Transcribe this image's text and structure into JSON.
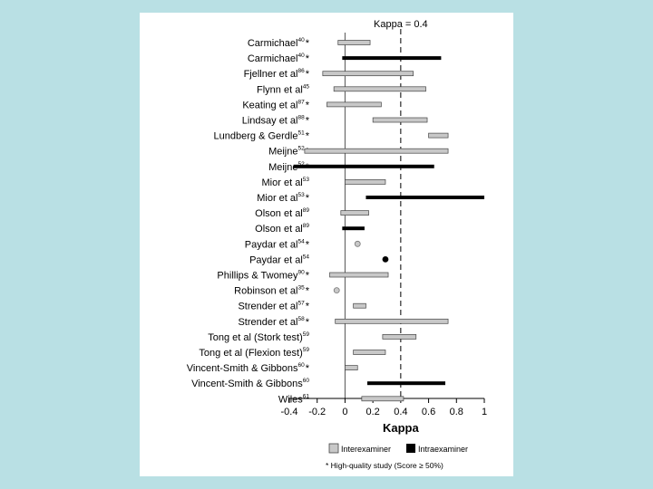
{
  "chart_data": {
    "type": "forest",
    "title": "",
    "xlabel": "Kappa",
    "xlim": [
      -0.4,
      1
    ],
    "xticks": [
      "-0.4",
      "-0.2",
      "0",
      "0.2",
      "0.4",
      "0.6",
      "0.8",
      "1"
    ],
    "reference_line": {
      "value": 0.4,
      "label": "Kappa = 0.4"
    },
    "legend": {
      "interexaminer": "Interexaminer",
      "intraexaminer": "Intraexaminer",
      "note": "* High-quality study (Score ≥ 50%)"
    },
    "colors": {
      "interexaminer": "#c8c8c8",
      "intraexaminer": "#000000"
    },
    "rows": [
      {
        "label": "Carmichael",
        "ref": "40",
        "star": "*",
        "type": "inter",
        "low": -0.05,
        "high": 0.18
      },
      {
        "label": "Carmichael",
        "ref": "40",
        "star": "*",
        "type": "intra",
        "low": -0.02,
        "high": 0.69
      },
      {
        "label": "Fjellner et al",
        "ref": "86",
        "star": "*",
        "type": "inter",
        "low": -0.16,
        "high": 0.49
      },
      {
        "label": "Flynn et al",
        "ref": "45",
        "star": "",
        "type": "inter",
        "low": -0.08,
        "high": 0.58
      },
      {
        "label": "Keating et al",
        "ref": "87",
        "star": "*",
        "type": "inter",
        "low": -0.13,
        "high": 0.26
      },
      {
        "label": "Lindsay et al",
        "ref": "88",
        "star": "*",
        "type": "inter",
        "low": 0.2,
        "high": 0.59
      },
      {
        "label": "Lundberg & Gerdle",
        "ref": "51",
        "star": "*",
        "type": "inter",
        "low": 0.6,
        "high": 0.74
      },
      {
        "label": "Meijne",
        "ref": "52",
        "star": "*",
        "type": "inter",
        "low": -0.29,
        "high": 0.74
      },
      {
        "label": "Meijne",
        "ref": "52",
        "star": "*",
        "type": "intra",
        "low": -0.37,
        "high": 0.64
      },
      {
        "label": "Mior et al",
        "ref": "53",
        "star": "",
        "type": "inter",
        "low": 0.0,
        "high": 0.29
      },
      {
        "label": "Mior et al",
        "ref": "53",
        "star": "*",
        "type": "intra",
        "low": 0.15,
        "high": 1.0
      },
      {
        "label": "Olson et al",
        "ref": "89",
        "star": "",
        "type": "inter",
        "low": -0.03,
        "high": 0.17
      },
      {
        "label": "Olson et al",
        "ref": "89",
        "star": "",
        "type": "intra",
        "low": -0.02,
        "high": 0.14
      },
      {
        "label": "Paydar et al",
        "ref": "54",
        "star": "*",
        "type": "inter",
        "point": 0.09
      },
      {
        "label": "Paydar et al",
        "ref": "54",
        "star": "",
        "type": "intra",
        "point": 0.29
      },
      {
        "label": "Phillips & Twomey",
        "ref": "90",
        "star": "*",
        "type": "inter",
        "low": -0.11,
        "high": 0.31
      },
      {
        "label": "Robinson et al",
        "ref": "35",
        "star": "*",
        "type": "inter",
        "point": -0.06
      },
      {
        "label": "Strender et al",
        "ref": "57",
        "star": "*",
        "type": "inter",
        "low": 0.06,
        "high": 0.15
      },
      {
        "label": "Strender et al",
        "ref": "58",
        "star": "*",
        "type": "inter",
        "low": -0.07,
        "high": 0.74
      },
      {
        "label": "Tong et al (Stork test)",
        "ref": "59",
        "star": "",
        "type": "inter",
        "low": 0.27,
        "high": 0.51
      },
      {
        "label": "Tong et al (Flexion test)",
        "ref": "59",
        "star": "",
        "type": "inter",
        "low": 0.06,
        "high": 0.29
      },
      {
        "label": "Vincent-Smith & Gibbons",
        "ref": "60",
        "star": "*",
        "type": "inter",
        "low": 0.0,
        "high": 0.09
      },
      {
        "label": "Vincent-Smith & Gibbons",
        "ref": "60",
        "star": "",
        "type": "intra",
        "low": 0.16,
        "high": 0.72
      },
      {
        "label": "Wiles",
        "ref": "61",
        "star": "",
        "type": "inter",
        "low": 0.12,
        "high": 0.42
      }
    ]
  }
}
